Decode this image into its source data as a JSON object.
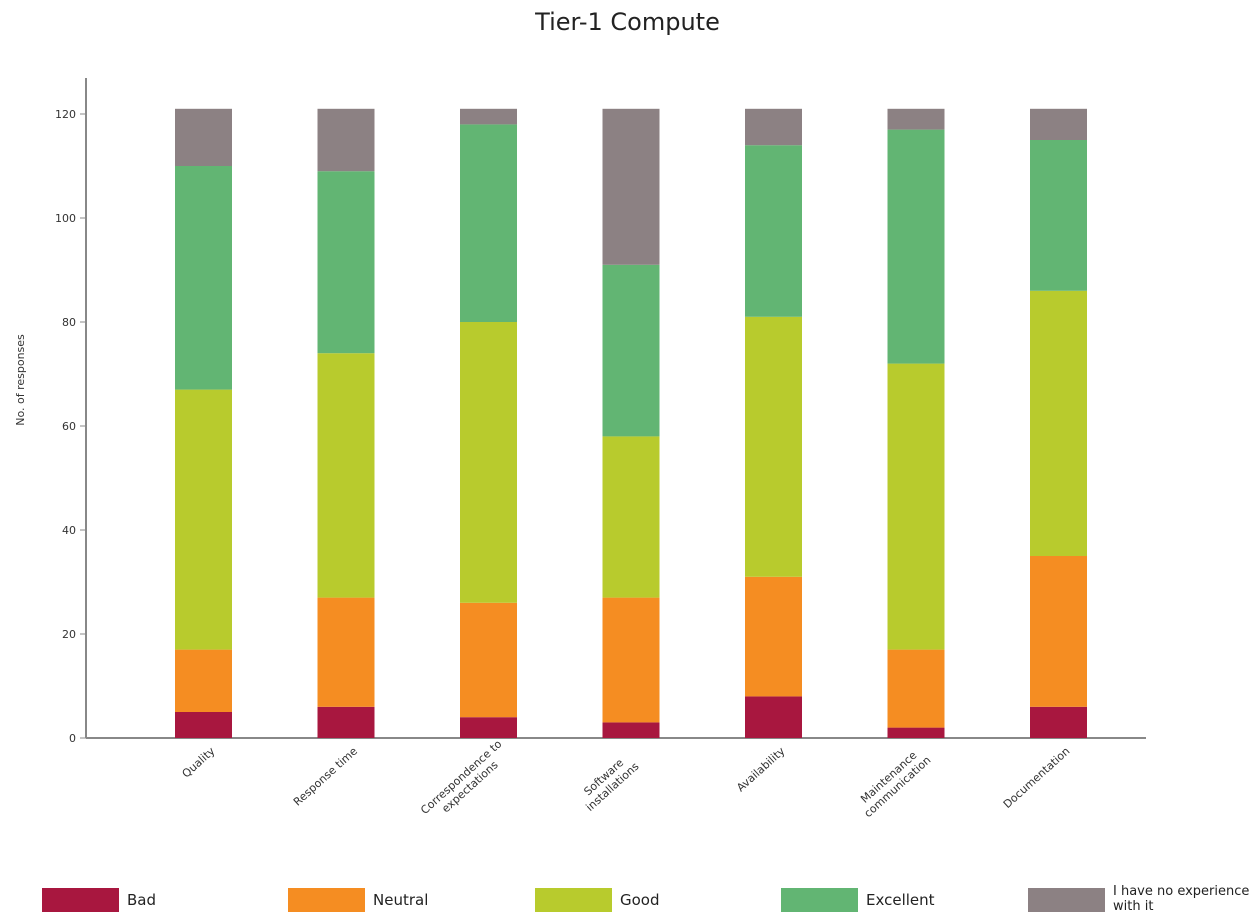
{
  "chart_data": {
    "type": "bar",
    "stacked": true,
    "title": "Tier-1 Compute",
    "ylabel": "No. of responses",
    "xlabel": "",
    "ylim": [
      0,
      120
    ],
    "yticks": [
      0,
      20,
      40,
      60,
      80,
      100,
      120
    ],
    "categories": [
      [
        "Quality"
      ],
      [
        "Response time"
      ],
      [
        "Correspondence to",
        "expectations"
      ],
      [
        "Software",
        "installations"
      ],
      [
        "Availability"
      ],
      [
        "Maintenance",
        "communication"
      ],
      [
        "Documentation"
      ]
    ],
    "series": [
      {
        "name": "Bad",
        "color": "#a8173f",
        "values": [
          5,
          6,
          4,
          3,
          8,
          2,
          6
        ]
      },
      {
        "name": "Neutral",
        "color": "#f58d22",
        "values": [
          12,
          21,
          22,
          24,
          23,
          15,
          29
        ]
      },
      {
        "name": "Good",
        "color": "#b8cb2d",
        "values": [
          50,
          47,
          54,
          31,
          50,
          55,
          51
        ]
      },
      {
        "name": "Excellent",
        "color": "#62b573",
        "values": [
          43,
          35,
          38,
          33,
          33,
          45,
          29
        ]
      },
      {
        "name": "I have no experience with it",
        "color": "#8c8183",
        "values": [
          11,
          12,
          3,
          30,
          7,
          4,
          6
        ]
      }
    ],
    "grid": false,
    "legend_position": "bottom"
  }
}
